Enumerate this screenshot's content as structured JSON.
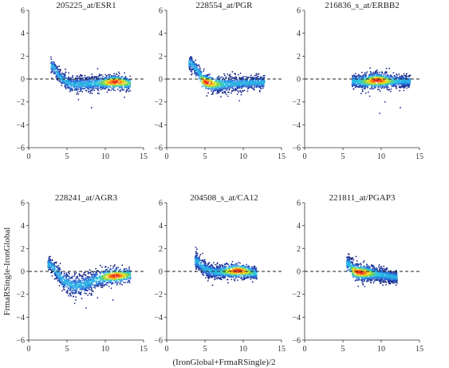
{
  "figure": {
    "shared_xlabel": "(IronGlobal+FrmaRSingle)/2",
    "shared_ylabel": "FrmaRSingle-IronGlobal"
  },
  "chart_data": [
    {
      "type": "scatter",
      "title": "205225_at/ESR1",
      "xlim": [
        0,
        15
      ],
      "ylim": [
        -6,
        6
      ],
      "xticks": [
        "0",
        "5",
        "10",
        "15"
      ],
      "yticks": [
        "6",
        "4",
        "2",
        "0",
        "−2",
        "−4",
        "−6"
      ],
      "reference_line": 0,
      "color_encoding": "point density (blue low → red high)",
      "segments": [
        [
          3.2,
          1.1,
          0.3
        ],
        [
          4.0,
          0.2,
          0.3
        ],
        [
          5.5,
          -0.5,
          0.35
        ],
        [
          7.5,
          -0.45,
          0.35
        ],
        [
          9.5,
          -0.35,
          0.3
        ],
        [
          11.5,
          -0.2,
          0.3
        ],
        [
          13.0,
          -0.4,
          0.3
        ]
      ],
      "density_peak": [
        11.3,
        -0.3
      ],
      "outliers": [
        [
          8.2,
          -2.5
        ],
        [
          6.5,
          -1.8
        ],
        [
          12.5,
          -1.6
        ],
        [
          9.0,
          0.9
        ]
      ]
    },
    {
      "type": "scatter",
      "title": "228554_at/PGR",
      "xlim": [
        0,
        15
      ],
      "ylim": [
        -6,
        6
      ],
      "xticks": [
        "0",
        "5",
        "10",
        "15"
      ],
      "yticks": [
        "6",
        "4",
        "2",
        "0",
        "−2",
        "−4",
        "−6"
      ],
      "reference_line": 0,
      "color_encoding": "point density (blue low → red high)",
      "segments": [
        [
          3.2,
          1.4,
          0.3
        ],
        [
          4.2,
          0.6,
          0.3
        ],
        [
          5.0,
          -0.2,
          0.35
        ],
        [
          6.0,
          -0.55,
          0.35
        ],
        [
          8.0,
          -0.45,
          0.35
        ],
        [
          10.0,
          -0.35,
          0.3
        ],
        [
          12.5,
          -0.3,
          0.3
        ]
      ],
      "density_peak": [
        5.2,
        -0.3
      ],
      "outliers": [
        [
          9.5,
          -1.9
        ],
        [
          8.0,
          -1.5
        ],
        [
          6.0,
          -1.3
        ]
      ]
    },
    {
      "type": "scatter",
      "title": "216836_s_at/ERBB2",
      "xlim": [
        0,
        15
      ],
      "ylim": [
        -6,
        6
      ],
      "xticks": [
        "0",
        "5",
        "10",
        "15"
      ],
      "yticks": [
        "6",
        "4",
        "2",
        "0",
        "−2",
        "−4",
        "−6"
      ],
      "reference_line": 0,
      "color_encoding": "point density (blue low → red high)",
      "segments": [
        [
          6.5,
          -0.2,
          0.3
        ],
        [
          8.0,
          -0.25,
          0.35
        ],
        [
          9.5,
          -0.1,
          0.35
        ],
        [
          11.0,
          -0.2,
          0.3
        ],
        [
          13.5,
          -0.2,
          0.25
        ]
      ],
      "density_peak": [
        9.5,
        -0.15
      ],
      "outliers": [
        [
          9.8,
          -3.0
        ],
        [
          12.5,
          -2.5
        ],
        [
          10.5,
          -2.0
        ],
        [
          8.5,
          -1.5
        ]
      ]
    },
    {
      "type": "scatter",
      "title": "228241_at/AGR3",
      "xlim": [
        0,
        15
      ],
      "ylim": [
        -6,
        6
      ],
      "xticks": [
        "0",
        "5",
        "10",
        "15"
      ],
      "yticks": [
        "6",
        "4",
        "2",
        "0",
        "−2",
        "−4",
        "−6"
      ],
      "reference_line": 0,
      "color_encoding": "point density (blue low → red high)",
      "segments": [
        [
          2.8,
          0.6,
          0.3
        ],
        [
          3.5,
          0.1,
          0.35
        ],
        [
          4.5,
          -0.8,
          0.45
        ],
        [
          6.0,
          -1.3,
          0.45
        ],
        [
          7.5,
          -1.1,
          0.45
        ],
        [
          9.0,
          -0.7,
          0.4
        ],
        [
          11.0,
          -0.4,
          0.35
        ],
        [
          13.0,
          -0.3,
          0.3
        ]
      ],
      "density_peak": [
        11.3,
        -0.4
      ],
      "outliers": [
        [
          7.5,
          -3.2
        ],
        [
          6.0,
          -2.8
        ],
        [
          11.0,
          -2.5
        ],
        [
          9.0,
          -2.3
        ]
      ]
    },
    {
      "type": "scatter",
      "title": "204508_s_at/CA12",
      "xlim": [
        0,
        15
      ],
      "ylim": [
        -6,
        6
      ],
      "xticks": [
        "0",
        "5",
        "10",
        "15"
      ],
      "yticks": [
        "6",
        "4",
        "2",
        "0",
        "−2",
        "−4",
        "−6"
      ],
      "reference_line": 0,
      "color_encoding": "point density (blue low → red high)",
      "segments": [
        [
          4.0,
          0.9,
          0.35
        ],
        [
          5.0,
          0.2,
          0.35
        ],
        [
          6.5,
          -0.1,
          0.3
        ],
        [
          8.0,
          0.0,
          0.3
        ],
        [
          9.5,
          0.05,
          0.3
        ],
        [
          11.5,
          -0.2,
          0.25
        ]
      ],
      "density_peak": [
        9.3,
        0.05
      ],
      "outliers": [
        [
          3.8,
          2.1
        ],
        [
          6.0,
          -1.2
        ],
        [
          8.0,
          -1.0
        ]
      ]
    },
    {
      "type": "scatter",
      "title": "221811_at/PGAP3",
      "xlim": [
        0,
        15
      ],
      "ylim": [
        -6,
        6
      ],
      "xticks": [
        "0",
        "5",
        "10",
        "15"
      ],
      "yticks": [
        "6",
        "4",
        "2",
        "0",
        "−2",
        "−4",
        "−6"
      ],
      "reference_line": 0,
      "color_encoding": "point density (blue low → red high)",
      "segments": [
        [
          5.8,
          0.7,
          0.3
        ],
        [
          6.5,
          0.1,
          0.35
        ],
        [
          7.5,
          -0.15,
          0.35
        ],
        [
          9.0,
          -0.25,
          0.3
        ],
        [
          10.5,
          -0.35,
          0.3
        ],
        [
          11.8,
          -0.5,
          0.25
        ]
      ],
      "density_peak": [
        7.2,
        -0.1
      ],
      "outliers": [
        [
          7.0,
          -1.3
        ],
        [
          9.0,
          -1.0
        ]
      ]
    }
  ]
}
